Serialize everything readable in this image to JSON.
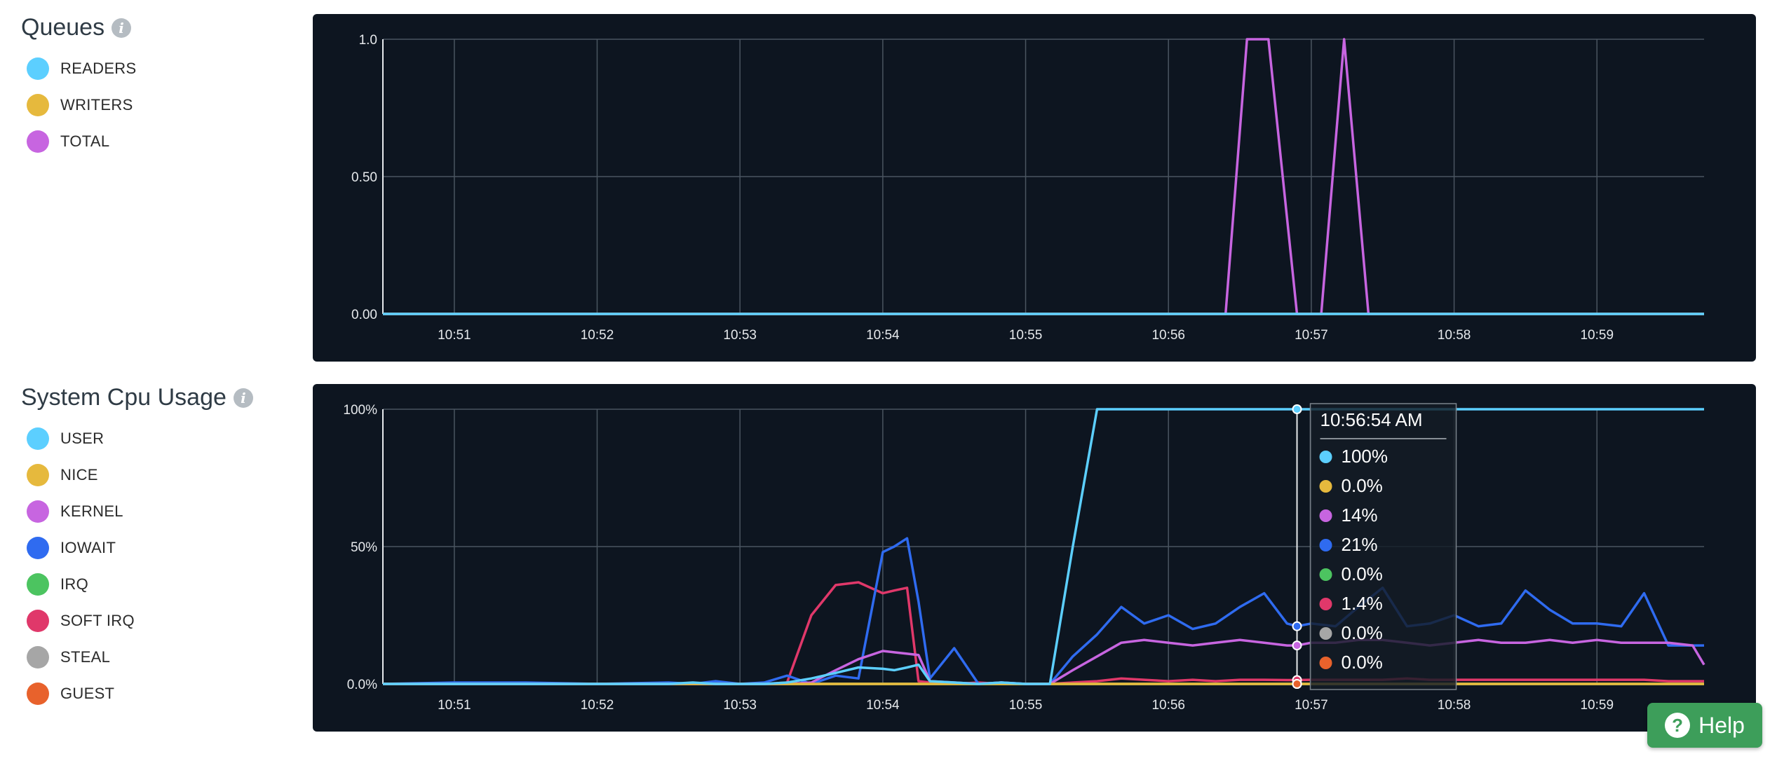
{
  "panels": [
    {
      "title": "Queues",
      "legend": [
        {
          "label": "READERS",
          "color": "#5ccfff"
        },
        {
          "label": "WRITERS",
          "color": "#e6b93d"
        },
        {
          "label": "TOTAL",
          "color": "#c765e0"
        }
      ]
    },
    {
      "title": "System Cpu Usage",
      "legend": [
        {
          "label": "USER",
          "color": "#5ccfff"
        },
        {
          "label": "NICE",
          "color": "#e6b93d"
        },
        {
          "label": "KERNEL",
          "color": "#c765e0"
        },
        {
          "label": "IOWAIT",
          "color": "#2f6bf0"
        },
        {
          "label": "IRQ",
          "color": "#4cc460"
        },
        {
          "label": "SOFT IRQ",
          "color": "#e0386a"
        },
        {
          "label": "STEAL",
          "color": "#a6a6a6"
        },
        {
          "label": "GUEST",
          "color": "#e8622c"
        }
      ]
    }
  ],
  "tooltip": {
    "time": "10:56:54 AM",
    "values": [
      "100%",
      "0.0%",
      "14%",
      "21%",
      "0.0%",
      "1.4%",
      "0.0%",
      "0.0%"
    ]
  },
  "help": {
    "label": "Help"
  },
  "chart_data": [
    {
      "type": "line",
      "title": "Queues",
      "x_tick_labels": [
        "10:51",
        "10:52",
        "10:53",
        "10:54",
        "10:55",
        "10:56",
        "10:57",
        "10:58",
        "10:59"
      ],
      "y_tick_labels": [
        "0.00",
        "0.50",
        "1.0"
      ],
      "ylim": [
        0,
        1
      ],
      "x_minutes": [
        50.5,
        56.4,
        56.55,
        56.7,
        56.9,
        57.07,
        57.23,
        57.4,
        59.75
      ],
      "series": [
        {
          "name": "READERS",
          "color": "#5ccfff",
          "values": [
            0,
            0,
            0,
            0,
            0,
            0,
            0,
            0,
            0
          ]
        },
        {
          "name": "WRITERS",
          "color": "#e6b93d",
          "values": [
            0,
            0,
            0,
            0,
            0,
            0,
            0,
            0,
            0
          ]
        },
        {
          "name": "TOTAL",
          "color": "#c765e0",
          "values": [
            0,
            0,
            1,
            1,
            0,
            0,
            1,
            0,
            0
          ]
        }
      ]
    },
    {
      "type": "line",
      "title": "System Cpu Usage",
      "x_tick_labels": [
        "10:51",
        "10:52",
        "10:53",
        "10:54",
        "10:55",
        "10:56",
        "10:57",
        "10:58",
        "10:59"
      ],
      "y_tick_labels": [
        "0.0%",
        "50%",
        "100%"
      ],
      "ylim": [
        0,
        100
      ],
      "x_minutes": [
        50.5,
        51.0,
        51.5,
        52.0,
        52.5,
        52.67,
        52.83,
        53.0,
        53.17,
        53.33,
        53.5,
        53.67,
        53.83,
        54.0,
        54.08,
        54.17,
        54.25,
        54.33,
        54.5,
        54.67,
        54.83,
        55.0,
        55.17,
        55.33,
        55.5,
        55.67,
        55.83,
        56.0,
        56.17,
        56.33,
        56.5,
        56.67,
        56.83,
        56.9,
        57.0,
        57.17,
        57.33,
        57.5,
        57.67,
        57.83,
        58.0,
        58.17,
        58.33,
        58.5,
        58.67,
        58.83,
        59.0,
        59.17,
        59.33,
        59.5,
        59.67,
        59.75
      ],
      "series": [
        {
          "name": "USER",
          "color": "#5ccfff",
          "values": [
            0,
            0,
            0,
            0,
            0,
            0.5,
            0,
            0,
            0,
            0.5,
            2,
            4,
            6,
            5.5,
            5,
            6,
            7,
            1,
            0.5,
            0,
            0.5,
            0,
            0,
            50,
            100,
            100,
            100,
            100,
            100,
            100,
            100,
            100,
            100,
            100,
            100,
            100,
            100,
            100,
            100,
            100,
            100,
            100,
            100,
            100,
            100,
            100,
            100,
            100,
            100,
            100,
            100,
            100
          ]
        },
        {
          "name": "NICE",
          "color": "#e6b93d",
          "values": [
            0,
            0,
            0,
            0,
            0,
            0,
            0,
            0,
            0,
            0,
            0,
            0,
            0,
            0,
            0,
            0,
            0,
            0,
            0,
            0,
            0,
            0,
            0,
            0,
            0,
            0,
            0,
            0,
            0,
            0,
            0,
            0,
            0,
            0,
            0,
            0,
            0,
            0,
            0,
            0,
            0,
            0,
            0,
            0,
            0,
            0,
            0,
            0,
            0,
            0,
            0,
            0
          ]
        },
        {
          "name": "KERNEL",
          "color": "#c765e0",
          "values": [
            0,
            0,
            0,
            0,
            0,
            0,
            0,
            0,
            0,
            0,
            0.5,
            5,
            9,
            12,
            11.5,
            11,
            10.5,
            1,
            0.5,
            0,
            0.5,
            0,
            0,
            5,
            10,
            15,
            16,
            15,
            14,
            15,
            16,
            15,
            14,
            14,
            15,
            15,
            16,
            16,
            15,
            14,
            15,
            16,
            15,
            15,
            16,
            15,
            16,
            15,
            15,
            15,
            14,
            7
          ]
        },
        {
          "name": "IOWAIT",
          "color": "#2f6bf0",
          "values": [
            0,
            0.5,
            0.5,
            0,
            0.5,
            0,
            1,
            0,
            0.5,
            3,
            0,
            3,
            2,
            48,
            50,
            53,
            30,
            2,
            13,
            0,
            0.5,
            0,
            0,
            10,
            18,
            28,
            22,
            25,
            20,
            22,
            28,
            33,
            22,
            21,
            22,
            21,
            28,
            35,
            21,
            22,
            25,
            21,
            22,
            34,
            27,
            22,
            22,
            21,
            33,
            14,
            14,
            14
          ]
        },
        {
          "name": "IRQ",
          "color": "#4cc460",
          "values": [
            0,
            0,
            0,
            0,
            0,
            0,
            0,
            0,
            0,
            0,
            0,
            0,
            0,
            0,
            0,
            0,
            0,
            0,
            0,
            0,
            0,
            0,
            0,
            0,
            0,
            0,
            0,
            0,
            0,
            0,
            0,
            0,
            0,
            0,
            0,
            0,
            0,
            0,
            0,
            0,
            0,
            0,
            0,
            0,
            0,
            0,
            0,
            0,
            0,
            0,
            0,
            0
          ]
        },
        {
          "name": "SOFT IRQ",
          "color": "#e0386a",
          "values": [
            0,
            0,
            0,
            0,
            0,
            0,
            0,
            0,
            0,
            0.5,
            25,
            36,
            37,
            33,
            34,
            35,
            1,
            0.5,
            0,
            0.5,
            0,
            0,
            0,
            0.5,
            1,
            2,
            1.5,
            1,
            1.5,
            1,
            1.5,
            1.5,
            1.4,
            1.4,
            1.5,
            1.5,
            1.5,
            1.5,
            2,
            1.5,
            1.5,
            1.5,
            1.5,
            1.5,
            1.5,
            1.5,
            1.5,
            1.5,
            1.5,
            1,
            1,
            1
          ]
        },
        {
          "name": "STEAL",
          "color": "#a6a6a6",
          "values": [
            0,
            0,
            0,
            0,
            0,
            0,
            0,
            0,
            0,
            0,
            0,
            0,
            0,
            0,
            0,
            0,
            0,
            0,
            0,
            0,
            0,
            0,
            0,
            0,
            0,
            0,
            0,
            0,
            0,
            0,
            0,
            0,
            0,
            0,
            0,
            0,
            0,
            0,
            0,
            0,
            0,
            0,
            0,
            0,
            0,
            0,
            0,
            0,
            0,
            0,
            0,
            0
          ]
        },
        {
          "name": "GUEST",
          "color": "#e8622c",
          "values": [
            0,
            0,
            0,
            0,
            0,
            0,
            0,
            0,
            0,
            0,
            0,
            0,
            0,
            0,
            0,
            0,
            0,
            0,
            0,
            0,
            0,
            0,
            0,
            0,
            0,
            0,
            0,
            0,
            0,
            0,
            0,
            0,
            0,
            0,
            0,
            0,
            0,
            0,
            0,
            0,
            0,
            0,
            0,
            0,
            0,
            0,
            0,
            0,
            0,
            0,
            0,
            0
          ]
        }
      ],
      "crosshair_x_minutes": 56.9
    }
  ]
}
